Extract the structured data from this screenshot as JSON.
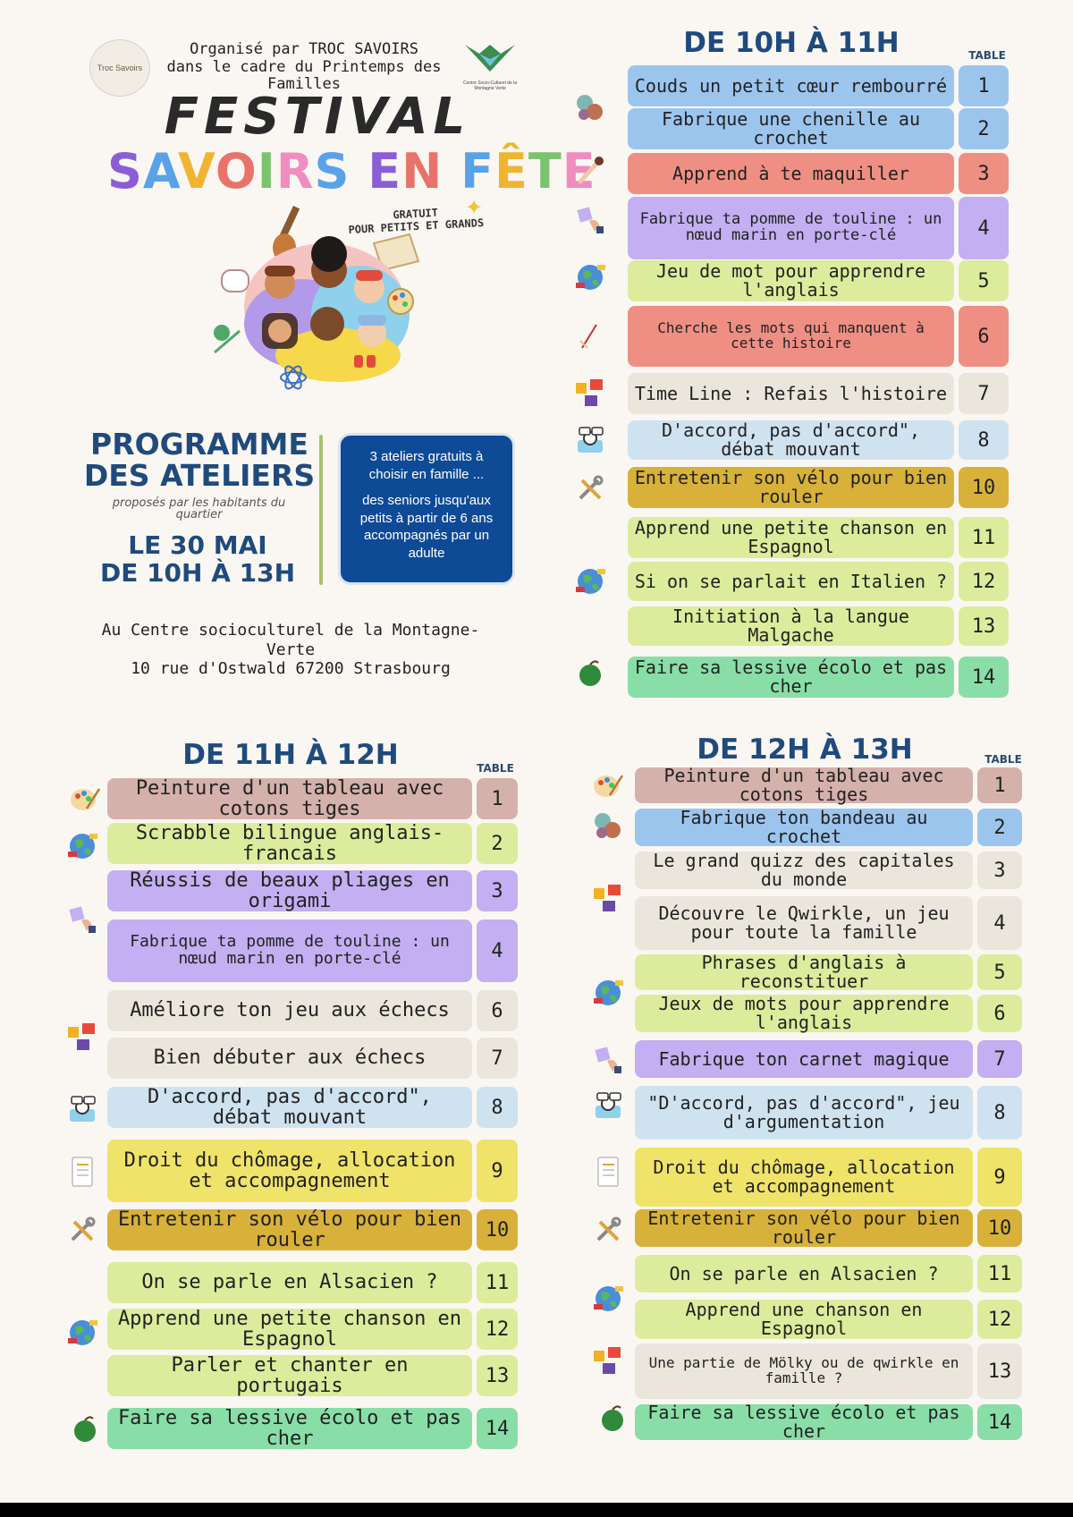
{
  "header": {
    "organizer_line1": "Organisé par TROC SAVOIRS",
    "organizer_line2": "dans le cadre du Printemps des Familles",
    "logo_left_text": "Troc Savoirs",
    "logo_right_text": "Centre Socio-Culturel de la Montagne Verte",
    "festival": "FESTIVAL",
    "subtitle_letters": [
      "S",
      "A",
      "V",
      "O",
      "I",
      "R",
      "S",
      " ",
      "E",
      "N",
      " ",
      "F",
      "Ê",
      "T",
      "E"
    ],
    "subtitle_colors": [
      "#8b5ed6",
      "#5aa2e8",
      "#f0b431",
      "#e8736b",
      "#7bc36f",
      "#f18cc0",
      "#5aa2e8",
      "",
      "#8b5ed6",
      "#e8736b",
      "",
      "#5aa2e8",
      "#f0b431",
      "#7bc36f",
      "#f18cc0"
    ],
    "free_line1": "GRATUIT",
    "free_line2": "POUR PETITS ET GRANDS"
  },
  "programme": {
    "title_line1": "PROGRAMME",
    "title_line2": "DES ATELIERS",
    "subtitle": "proposés par les habitants du quartier",
    "date_line1": "LE 30 MAI",
    "date_line2": "DE 10H À 13H",
    "info_line1": "3 ateliers gratuits à choisir en famille ...",
    "info_line2": "des seniors jusqu'aux petits à partir de 6 ans accompagnés par un adulte"
  },
  "address": {
    "line1": "Au Centre socioculturel de la Montagne-Verte",
    "line2": "10 rue d'Ostwald 67200 Strasbourg"
  },
  "colors": {
    "blue": "#9cc5ee",
    "red": "#ef8f84",
    "purple": "#c3aff1",
    "lime": "#dcec9c",
    "beige": "#ebe6dc",
    "lightblue": "#cfe2ef",
    "gold": "#d8b13a",
    "green": "#89dea8",
    "pink": "#d5b1ab",
    "yellow": "#efe36a"
  },
  "session1": {
    "title": "DE 10H À 11H",
    "table_label": "TABLE",
    "rows": [
      {
        "label": "Couds un petit cœur rembourré",
        "table": "1"
      },
      {
        "label": "Fabrique une chenille au crochet",
        "table": "2"
      },
      {
        "label": "Apprend à te maquiller",
        "table": "3"
      },
      {
        "label": "Fabrique ta pomme de touline : un nœud marin en porte-clé",
        "table": "4"
      },
      {
        "label": "Jeu de mot pour apprendre l'anglais",
        "table": "5"
      },
      {
        "label": "Cherche les mots qui manquent à cette histoire",
        "table": "6"
      },
      {
        "label": "Time Line : Refais l'histoire",
        "table": "7"
      },
      {
        "label": "D'accord, pas d'accord\", débat mouvant",
        "table": "8"
      },
      {
        "label": "Entretenir son vélo pour bien rouler",
        "table": "10"
      },
      {
        "label": "Apprend une petite chanson en Espagnol",
        "table": "11"
      },
      {
        "label": "Si on se parlait en Italien ?",
        "table": "12"
      },
      {
        "label": "Initiation à la langue Malgache",
        "table": "13"
      },
      {
        "label": "Faire sa lessive écolo et pas cher",
        "table": "14"
      }
    ]
  },
  "session2": {
    "title": "DE 11H À 12H",
    "table_label": "TABLE",
    "rows": [
      {
        "label": "Peinture d'un tableau avec cotons tiges",
        "table": "1"
      },
      {
        "label": "Scrabble bilingue anglais-francais",
        "table": "2"
      },
      {
        "label": "Réussis de beaux pliages en origami",
        "table": "3"
      },
      {
        "label": "Fabrique ta pomme de touline : un nœud marin en porte-clé",
        "table": "4"
      },
      {
        "label": "Améliore ton jeu aux échecs",
        "table": "6"
      },
      {
        "label": "Bien débuter aux échecs",
        "table": "7"
      },
      {
        "label": "D'accord, pas d'accord\", débat mouvant",
        "table": "8"
      },
      {
        "label": "Droit du chômage, allocation et accompagnement",
        "table": "9"
      },
      {
        "label": "Entretenir son vélo pour bien rouler",
        "table": "10"
      },
      {
        "label": "On se parle en Alsacien ?",
        "table": "11"
      },
      {
        "label": "Apprend une petite chanson en Espagnol",
        "table": "12"
      },
      {
        "label": "Parler et chanter en portugais",
        "table": "13"
      },
      {
        "label": "Faire sa lessive écolo et pas cher",
        "table": "14"
      }
    ]
  },
  "session3": {
    "title": "DE 12H À 13H",
    "table_label": "TABLE",
    "rows": [
      {
        "label": "Peinture d'un tableau avec cotons tiges",
        "table": "1"
      },
      {
        "label": "Fabrique ton bandeau au crochet",
        "table": "2"
      },
      {
        "label": "Le grand quizz des capitales du monde",
        "table": "3"
      },
      {
        "label": "Découvre le Qwirkle, un jeu pour toute la famille",
        "table": "4"
      },
      {
        "label": "Phrases d'anglais à reconstituer",
        "table": "5"
      },
      {
        "label": "Jeux de mots pour apprendre l'anglais",
        "table": "6"
      },
      {
        "label": "Fabrique ton carnet magique",
        "table": "7"
      },
      {
        "label": "\"D'accord, pas d'accord\", jeu d'argumentation",
        "table": "8"
      },
      {
        "label": "Droit du chômage, allocation et accompagnement",
        "table": "9"
      },
      {
        "label": "Entretenir son vélo pour bien rouler",
        "table": "10"
      },
      {
        "label": "On se parle en Alsacien ?",
        "table": "11"
      },
      {
        "label": "Apprend une chanson en Espagnol",
        "table": "12"
      },
      {
        "label": "Une partie de Mölky ou de qwirkle en famille ?",
        "table": "13"
      },
      {
        "label": "Faire sa lessive écolo et pas cher",
        "table": "14"
      }
    ]
  }
}
